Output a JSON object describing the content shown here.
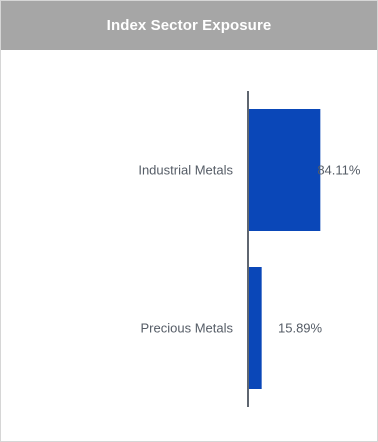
{
  "header": {
    "title": "Index Sector Exposure"
  },
  "chart_data": {
    "type": "bar",
    "orientation": "horizontal",
    "title": "Index Sector Exposure",
    "categories": [
      "Industrial Metals",
      "Precious Metals"
    ],
    "values": [
      84.11,
      15.89
    ],
    "data_labels": [
      "84.11%",
      "15.89%"
    ],
    "xlim": [
      0,
      100
    ],
    "unit": "%",
    "bar_color": "#0a47b8",
    "grid": false,
    "legend": "none"
  }
}
